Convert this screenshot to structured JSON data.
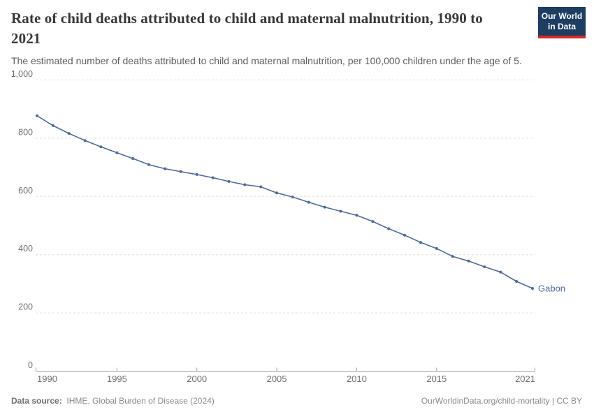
{
  "header": {
    "title": "Rate of child deaths attributed to child and maternal malnutrition, 1990 to 2021",
    "subtitle": "The estimated number of deaths attributed to child and maternal malnutrition, per 100,000 children under the age of 5."
  },
  "logo": {
    "line1": "Our World",
    "line2": "in Data",
    "bg_color": "#1d3d63",
    "accent_color": "#d42b21"
  },
  "chart_data": {
    "type": "line",
    "title": "Rate of child deaths attributed to child and maternal malnutrition, 1990 to 2021",
    "xlabel": "",
    "ylabel": "",
    "xlim": [
      1990,
      2021
    ],
    "ylim": [
      0,
      1000
    ],
    "x_ticks": [
      1990,
      1995,
      2000,
      2005,
      2010,
      2015,
      2021
    ],
    "y_ticks": [
      0,
      200,
      400,
      600,
      800,
      1000
    ],
    "grid": "horizontal-dashed",
    "legend_position": "end-of-line-label",
    "series": [
      {
        "name": "Gabon",
        "color": "#4c6a9c",
        "x": [
          1990,
          1991,
          1992,
          1993,
          1994,
          1995,
          1996,
          1997,
          1998,
          1999,
          2000,
          2001,
          2002,
          2003,
          2004,
          2005,
          2006,
          2007,
          2008,
          2009,
          2010,
          2011,
          2012,
          2013,
          2014,
          2015,
          2016,
          2017,
          2018,
          2019,
          2020,
          2021
        ],
        "values": [
          876,
          842,
          815,
          791,
          769,
          749,
          729,
          708,
          694,
          684,
          674,
          663,
          650,
          639,
          632,
          611,
          597,
          579,
          562,
          548,
          534,
          513,
          488,
          466,
          441,
          420,
          393,
          377,
          357,
          339,
          307,
          283
        ]
      }
    ],
    "colors": {
      "gridline": "#dedede",
      "axis": "#9e9e9e",
      "tick_label": "#6e6e6e"
    }
  },
  "footer": {
    "source_label": "Data source:",
    "source_text": "IHME, Global Burden of Disease (2024)",
    "rights": "OurWorldinData.org/child-mortality | CC BY"
  }
}
